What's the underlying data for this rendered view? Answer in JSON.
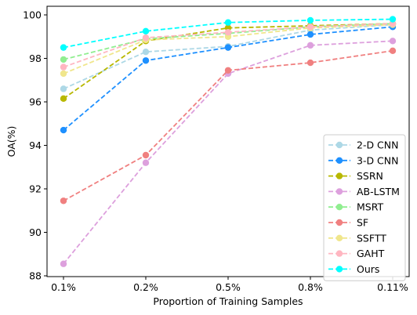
{
  "chart_data": {
    "type": "line",
    "title": "",
    "xlabel": "Proportion of Training Samples",
    "ylabel": "OA(%)",
    "categories": [
      "0.1%",
      "0.2%",
      "0.5%",
      "0.8%",
      "0.11%"
    ],
    "ylim": [
      88,
      100
    ],
    "yticks": [
      88,
      90,
      92,
      94,
      96,
      98,
      100
    ],
    "grid": false,
    "legend_position": "lower-right",
    "line_style": "dashed",
    "marker": "circle",
    "series": [
      {
        "name": "2-D CNN",
        "color": "#add8e6",
        "values": [
          96.6,
          98.3,
          98.55,
          99.3,
          99.55
        ]
      },
      {
        "name": "3-D CNN",
        "color": "#1e90ff",
        "values": [
          94.7,
          97.9,
          98.5,
          99.1,
          99.45
        ]
      },
      {
        "name": "SSRN",
        "color": "#b8b800",
        "values": [
          96.15,
          98.8,
          99.4,
          99.5,
          99.6
        ]
      },
      {
        "name": "AB-LSTM",
        "color": "#dda0dd",
        "values": [
          88.55,
          93.2,
          97.3,
          98.6,
          98.8
        ]
      },
      {
        "name": "MSRT",
        "color": "#90ee90",
        "values": [
          97.95,
          98.9,
          99.15,
          99.45,
          99.6
        ]
      },
      {
        "name": "SF",
        "color": "#f08080",
        "values": [
          91.45,
          93.55,
          97.45,
          97.8,
          98.35
        ]
      },
      {
        "name": "SSFTT",
        "color": "#f0e68c",
        "values": [
          97.3,
          98.85,
          99.0,
          99.4,
          99.55
        ]
      },
      {
        "name": "GAHT",
        "color": "#ffb6c1",
        "values": [
          97.6,
          98.95,
          99.2,
          99.45,
          99.6
        ]
      },
      {
        "name": "Ours",
        "color": "#00ffff",
        "values": [
          98.5,
          99.25,
          99.65,
          99.75,
          99.8
        ]
      }
    ]
  }
}
